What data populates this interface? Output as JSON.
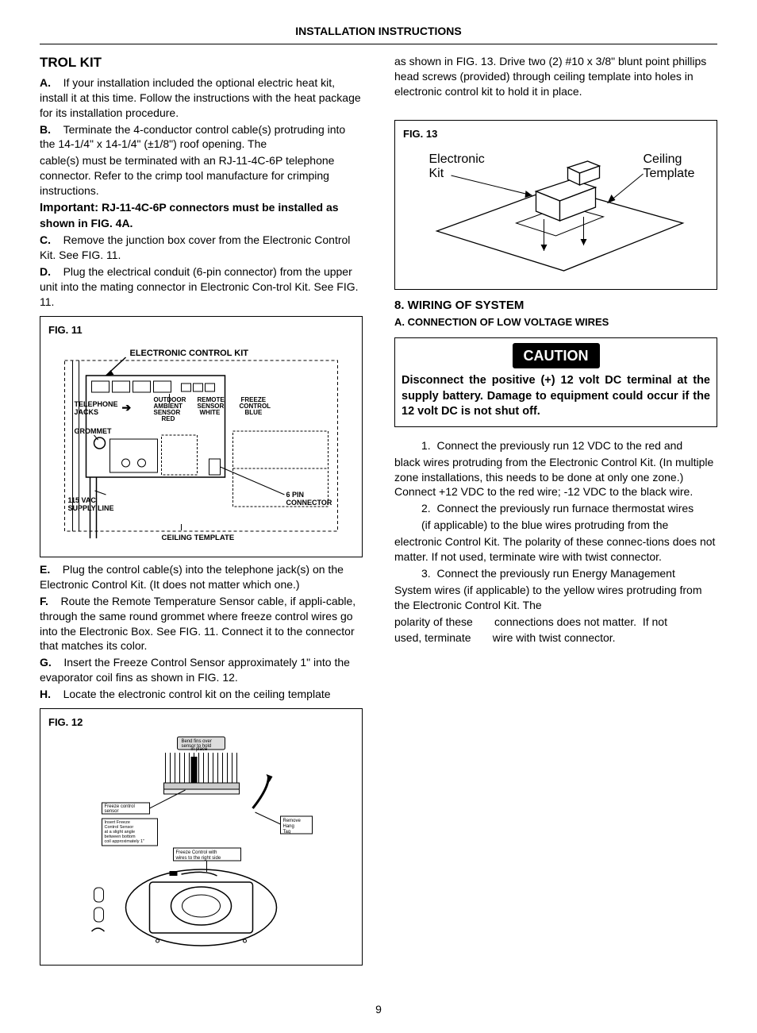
{
  "header": "INSTALLATION INSTRUCTIONS",
  "left": {
    "title": "TROL KIT",
    "itemA_label": "A.",
    "itemA": "If your installation included the optional electric heat kit, install it at this time. Follow the instructions with the heat package for its installation procedure.",
    "itemB_label": "B.",
    "itemB1": "Terminate the 4-conductor control cable(s) protruding into the 14-1/4\" x 14-1/4\" (±1/8\") roof opening. The",
    "itemB2": "cable(s) must be terminated with an RJ-11-4C-6P telephone connector. Refer to the crimp tool manufacture for crimping instructions.",
    "important_label": "Important:",
    "important_text": "RJ-11-4C-6P connectors must be installed as shown in FIG. 4A.",
    "itemC_label": "C.",
    "itemC": "Remove the junction box cover from the Electronic Control Kit. See FIG. 11.",
    "itemD_label": "D.",
    "itemD": "Plug the electrical conduit (6-pin connector) from the upper unit into the mating connector in Electronic Con-trol Kit. See FIG. 11.",
    "fig11_label": "FIG. 11",
    "fig11": {
      "title": "ELECTRONIC CONTROL KIT",
      "tel_jacks": "TELEPHONE JACKS",
      "outdoor": "OUTDOOR AMBIENT SENSOR RED",
      "remote": "REMOTE SENSOR WHITE",
      "freeze": "FREEZE CONTROL BLUE",
      "grommet": "GROMMET",
      "supply": "115 VAC SUPPLY LINE",
      "pin6": "6 PIN CONNECTOR",
      "ceiling": "CEILING TEMPLATE"
    },
    "itemE_label": "E.",
    "itemE": "Plug the control cable(s) into the telephone jack(s) on the Electronic Control Kit.  (It does not matter which one.)",
    "itemF_label": "F.",
    "itemF": "Route the Remote Temperature Sensor cable, if appli-cable, through the same round grommet where freeze control wires go into the Electronic Box. See FIG. 11. Connect it to the connector that matches its color.",
    "itemG_label": "G.",
    "itemG": "Insert the Freeze Control Sensor approximately 1\" into the evaporator coil fins as shown in FIG. 12.",
    "itemH_label": "H.",
    "itemH": "Locate the electronic control kit on the ceiling template",
    "fig12_label": "FIG. 12",
    "fig12": {
      "bend": "Bend fins over sensor to hold in place",
      "freeze_sensor": "Freeze control sensor",
      "insert": "Insert Freeze Control Sensor at a slight angle between bottom coil approximately 1\"",
      "remove": "Remove Hang Tag",
      "fc_right": "Freeze Control with wires to the right side"
    }
  },
  "right": {
    "top_para": "as shown in FIG. 13. Drive two (2) #10 x 3/8\" blunt point phillips head screws (provided) through ceiling template into holes in electronic control kit to hold it in place.",
    "fig13_label": "FIG. 13",
    "fig13": {
      "ek": "Electronic Kit",
      "ct": "Ceiling Template"
    },
    "sec8": "8.    WIRING OF SYSTEM",
    "sec8a": "A.    CONNECTION OF LOW VOLTAGE WIRES",
    "caution_title": "CAUTION",
    "caution_body": "Disconnect the positive (+) 12 volt DC terminal at the supply battery.  Damage to equipment could occur if the 12 volt DC is not shut off.",
    "w1": "1.  Connect the previously run 12 VDC to the red and black wires protruding from the Electronic Control Kit. (In multiple zone installations, this needs to be done at only one zone.) Connect +12 VDC to the red wire; -12 VDC to the black wire.",
    "w2a": "2.  Connect the previously run furnace thermostat wires",
    "w2b": "(if applicable) to the blue wires protruding from the electronic Control Kit. The polarity of these connec-tions does not matter.  If not used, terminate wire with twist connector.",
    "w3a": "3.  Connect the previously run Energy Management System wires (if applicable) to the yellow wires protruding from the Electronic Control Kit. The",
    "w3b1": "polarity of these",
    "w3b2": "connections does not matter.  If not",
    "w3c1": "used, terminate",
    "w3c2": "wire with twist connector."
  },
  "page": "9"
}
